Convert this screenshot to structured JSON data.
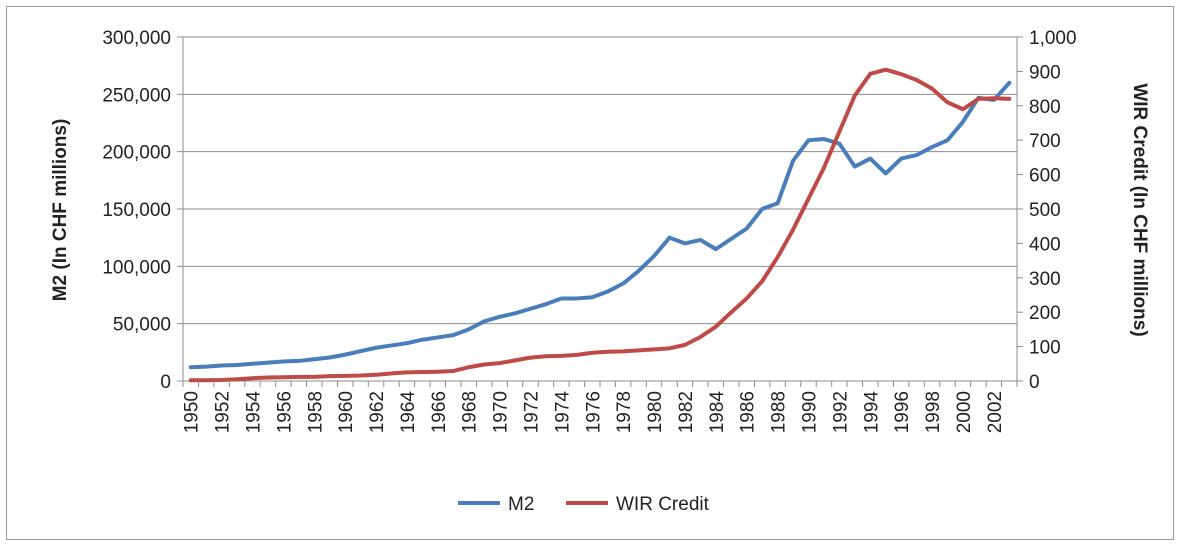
{
  "chart_data": {
    "type": "line",
    "x": [
      1950,
      1951,
      1952,
      1953,
      1954,
      1955,
      1956,
      1957,
      1958,
      1959,
      1960,
      1961,
      1962,
      1963,
      1964,
      1965,
      1966,
      1967,
      1968,
      1969,
      1970,
      1971,
      1972,
      1973,
      1974,
      1975,
      1976,
      1977,
      1978,
      1979,
      1980,
      1981,
      1982,
      1983,
      1984,
      1985,
      1986,
      1987,
      1988,
      1989,
      1990,
      1991,
      1992,
      1993,
      1994,
      1995,
      1996,
      1997,
      1998,
      1999,
      2000,
      2001,
      2002,
      2003
    ],
    "x_tick_labels": [
      "1950",
      "1952",
      "1954",
      "1956",
      "1958",
      "1960",
      "1962",
      "1964",
      "1966",
      "1968",
      "1970",
      "1972",
      "1974",
      "1976",
      "1978",
      "1980",
      "1982",
      "1984",
      "1986",
      "1988",
      "1990",
      "1992",
      "1994",
      "1996",
      "1998",
      "2000",
      "2002"
    ],
    "series": [
      {
        "name": "M2",
        "axis": "left",
        "color": "#4a7ebb",
        "values": [
          12000,
          12500,
          13500,
          14000,
          15000,
          16000,
          17000,
          17500,
          19000,
          20500,
          23000,
          26000,
          29000,
          31000,
          33000,
          36000,
          38000,
          40000,
          45000,
          52000,
          56000,
          59000,
          63000,
          67000,
          72000,
          72000,
          73000,
          78000,
          85000,
          96000,
          109000,
          125000,
          120000,
          123000,
          115000,
          124000,
          133000,
          150000,
          155000,
          192000,
          210000,
          211000,
          207000,
          187000,
          194000,
          181000,
          194000,
          197000,
          204000,
          210000,
          226000,
          247000,
          245000,
          260000
        ]
      },
      {
        "name": "WIR Credit",
        "axis": "right",
        "color": "#be4b48",
        "values": [
          2,
          2,
          3,
          5,
          8,
          10,
          11,
          12,
          12,
          14,
          15,
          16,
          18,
          22,
          25,
          26,
          27,
          29,
          40,
          48,
          52,
          60,
          68,
          72,
          73,
          76,
          82,
          85,
          86,
          89,
          92,
          95,
          105,
          128,
          158,
          200,
          240,
          290,
          360,
          440,
          530,
          620,
          725,
          830,
          893,
          905,
          892,
          875,
          850,
          810,
          790,
          820,
          822,
          820
        ]
      }
    ],
    "left_axis": {
      "label": "M2 (In CHF millions)",
      "min": 0,
      "max": 300000,
      "tick_labels": [
        "0",
        "50,000",
        "100,000",
        "150,000",
        "200,000",
        "250,000",
        "300,000"
      ]
    },
    "right_axis": {
      "label": "WIR Credit (In CHF millions)",
      "min": 0,
      "max": 1000,
      "tick_labels": [
        "0",
        "100",
        "200",
        "300",
        "400",
        "500",
        "600",
        "700",
        "800",
        "900",
        "1,000"
      ]
    },
    "grid": "horizontal",
    "legend_position": "bottom",
    "title": ""
  }
}
